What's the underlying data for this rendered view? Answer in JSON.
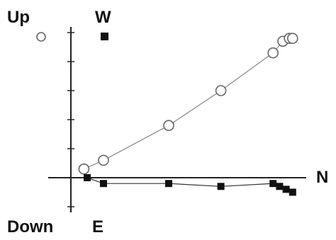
{
  "chart_data": {
    "type": "scatter",
    "title": "",
    "axes": {
      "horizontal_label": "N",
      "vertical_top_label": "W",
      "vertical_bottom_label": "E",
      "up_label": "Up",
      "down_label": "Down"
    },
    "grid": false,
    "legend": "top-left",
    "series": [
      {
        "name": "Up",
        "marker": "open-circle",
        "color": "#111111",
        "points": [
          {
            "x": 0.4,
            "y": 0.3
          },
          {
            "x": 1.0,
            "y": 0.6
          },
          {
            "x": 3.0,
            "y": 1.8
          },
          {
            "x": 4.6,
            "y": 3.0
          },
          {
            "x": 6.2,
            "y": 4.3
          },
          {
            "x": 6.5,
            "y": 4.7
          },
          {
            "x": 6.7,
            "y": 4.8
          },
          {
            "x": 6.8,
            "y": 4.8
          }
        ]
      },
      {
        "name": "W",
        "marker": "filled-square",
        "color": "#111111",
        "points": [
          {
            "x": 0.5,
            "y": 0.0
          },
          {
            "x": 1.0,
            "y": -0.2
          },
          {
            "x": 3.0,
            "y": -0.2
          },
          {
            "x": 4.6,
            "y": -0.3
          },
          {
            "x": 6.2,
            "y": -0.2
          },
          {
            "x": 6.4,
            "y": -0.3
          },
          {
            "x": 6.6,
            "y": -0.4
          },
          {
            "x": 6.8,
            "y": -0.5
          }
        ]
      }
    ]
  }
}
